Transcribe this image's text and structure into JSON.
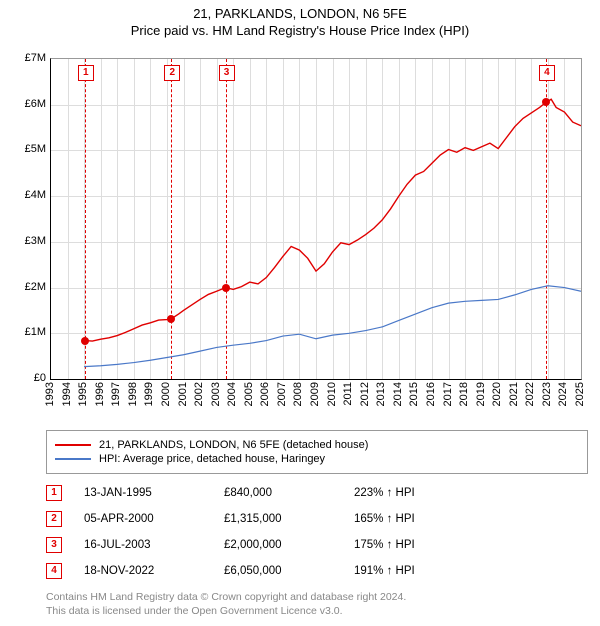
{
  "title_line1": "21, PARKLANDS, LONDON, N6 5FE",
  "title_line2": "Price paid vs. HM Land Registry's House Price Index (HPI)",
  "chart": {
    "type": "line",
    "background_color": "#ffffff",
    "grid_color": "#dddddd",
    "axis_color": "#000000",
    "x": {
      "min": 1993,
      "max": 2025,
      "ticks": [
        1993,
        1994,
        1995,
        1996,
        1997,
        1998,
        1999,
        2000,
        2001,
        2002,
        2003,
        2004,
        2005,
        2006,
        2007,
        2008,
        2009,
        2010,
        2011,
        2012,
        2013,
        2014,
        2015,
        2016,
        2017,
        2018,
        2019,
        2020,
        2021,
        2022,
        2023,
        2024,
        2025
      ],
      "label_fontsize": 11
    },
    "y": {
      "min": 0,
      "max": 7000000,
      "ticks": [
        0,
        1000000,
        2000000,
        3000000,
        4000000,
        5000000,
        6000000,
        7000000
      ],
      "tick_labels": [
        "£0",
        "£1M",
        "£2M",
        "£3M",
        "£4M",
        "£5M",
        "£6M",
        "£7M"
      ],
      "label_fontsize": 11
    },
    "series": [
      {
        "name": "21, PARKLANDS, LONDON, N6 5FE (detached house)",
        "color": "#e00000",
        "line_width": 1.4,
        "points": [
          [
            1995.04,
            840000
          ],
          [
            1995.5,
            830000
          ],
          [
            1996.0,
            870000
          ],
          [
            1996.5,
            900000
          ],
          [
            1997.0,
            950000
          ],
          [
            1997.5,
            1020000
          ],
          [
            1998.0,
            1100000
          ],
          [
            1998.5,
            1180000
          ],
          [
            1999.0,
            1230000
          ],
          [
            1999.5,
            1290000
          ],
          [
            2000.0,
            1300000
          ],
          [
            2000.26,
            1315000
          ],
          [
            2000.7,
            1420000
          ],
          [
            2001.0,
            1500000
          ],
          [
            2001.5,
            1620000
          ],
          [
            2002.0,
            1740000
          ],
          [
            2002.5,
            1850000
          ],
          [
            2003.0,
            1920000
          ],
          [
            2003.54,
            2000000
          ],
          [
            2004.0,
            1960000
          ],
          [
            2004.5,
            2020000
          ],
          [
            2005.0,
            2120000
          ],
          [
            2005.5,
            2080000
          ],
          [
            2006.0,
            2220000
          ],
          [
            2006.5,
            2440000
          ],
          [
            2007.0,
            2680000
          ],
          [
            2007.5,
            2900000
          ],
          [
            2008.0,
            2820000
          ],
          [
            2008.5,
            2640000
          ],
          [
            2009.0,
            2360000
          ],
          [
            2009.5,
            2520000
          ],
          [
            2010.0,
            2780000
          ],
          [
            2010.5,
            2980000
          ],
          [
            2011.0,
            2940000
          ],
          [
            2011.5,
            3040000
          ],
          [
            2012.0,
            3160000
          ],
          [
            2012.5,
            3300000
          ],
          [
            2013.0,
            3480000
          ],
          [
            2013.5,
            3720000
          ],
          [
            2014.0,
            4000000
          ],
          [
            2014.5,
            4260000
          ],
          [
            2015.0,
            4460000
          ],
          [
            2015.5,
            4540000
          ],
          [
            2016.0,
            4720000
          ],
          [
            2016.5,
            4900000
          ],
          [
            2017.0,
            5020000
          ],
          [
            2017.5,
            4960000
          ],
          [
            2018.0,
            5060000
          ],
          [
            2018.5,
            5000000
          ],
          [
            2019.0,
            5080000
          ],
          [
            2019.5,
            5160000
          ],
          [
            2020.0,
            5040000
          ],
          [
            2020.5,
            5280000
          ],
          [
            2021.0,
            5520000
          ],
          [
            2021.5,
            5700000
          ],
          [
            2022.0,
            5820000
          ],
          [
            2022.5,
            5940000
          ],
          [
            2022.88,
            6050000
          ],
          [
            2023.2,
            6120000
          ],
          [
            2023.5,
            5940000
          ],
          [
            2024.0,
            5840000
          ],
          [
            2024.5,
            5620000
          ],
          [
            2025.0,
            5540000
          ]
        ]
      },
      {
        "name": "HPI: Average price, detached house, Haringey",
        "color": "#4a78c8",
        "line_width": 1.2,
        "points": [
          [
            1995.0,
            270000
          ],
          [
            1996.0,
            290000
          ],
          [
            1997.0,
            320000
          ],
          [
            1998.0,
            360000
          ],
          [
            1999.0,
            410000
          ],
          [
            2000.0,
            470000
          ],
          [
            2001.0,
            530000
          ],
          [
            2002.0,
            610000
          ],
          [
            2003.0,
            690000
          ],
          [
            2004.0,
            740000
          ],
          [
            2005.0,
            780000
          ],
          [
            2006.0,
            840000
          ],
          [
            2007.0,
            940000
          ],
          [
            2008.0,
            980000
          ],
          [
            2009.0,
            880000
          ],
          [
            2010.0,
            960000
          ],
          [
            2011.0,
            1000000
          ],
          [
            2012.0,
            1060000
          ],
          [
            2013.0,
            1140000
          ],
          [
            2014.0,
            1280000
          ],
          [
            2015.0,
            1420000
          ],
          [
            2016.0,
            1560000
          ],
          [
            2017.0,
            1660000
          ],
          [
            2018.0,
            1700000
          ],
          [
            2019.0,
            1720000
          ],
          [
            2020.0,
            1740000
          ],
          [
            2021.0,
            1840000
          ],
          [
            2022.0,
            1960000
          ],
          [
            2023.0,
            2040000
          ],
          [
            2024.0,
            2000000
          ],
          [
            2025.0,
            1920000
          ]
        ]
      }
    ],
    "sale_markers": [
      {
        "n": "1",
        "x": 1995.04,
        "y": 840000
      },
      {
        "n": "2",
        "x": 2000.26,
        "y": 1315000
      },
      {
        "n": "3",
        "x": 2003.54,
        "y": 2000000
      },
      {
        "n": "4",
        "x": 2022.88,
        "y": 6050000
      }
    ],
    "marker_dot_color": "#e00000",
    "marker_box_border": "#e00000",
    "marker_vline_color": "#e00000"
  },
  "legend": {
    "items": [
      {
        "label": "21, PARKLANDS, LONDON, N6 5FE (detached house)",
        "color": "#e00000"
      },
      {
        "label": "HPI: Average price, detached house, Haringey",
        "color": "#4a78c8"
      }
    ]
  },
  "sales": [
    {
      "n": "1",
      "date": "13-JAN-1995",
      "price": "£840,000",
      "pct": "223% ↑ HPI"
    },
    {
      "n": "2",
      "date": "05-APR-2000",
      "price": "£1,315,000",
      "pct": "165% ↑ HPI"
    },
    {
      "n": "3",
      "date": "16-JUL-2003",
      "price": "£2,000,000",
      "pct": "175% ↑ HPI"
    },
    {
      "n": "4",
      "date": "18-NOV-2022",
      "price": "£6,050,000",
      "pct": "191% ↑ HPI"
    }
  ],
  "footer_line1": "Contains HM Land Registry data © Crown copyright and database right 2024.",
  "footer_line2": "This data is licensed under the Open Government Licence v3.0."
}
